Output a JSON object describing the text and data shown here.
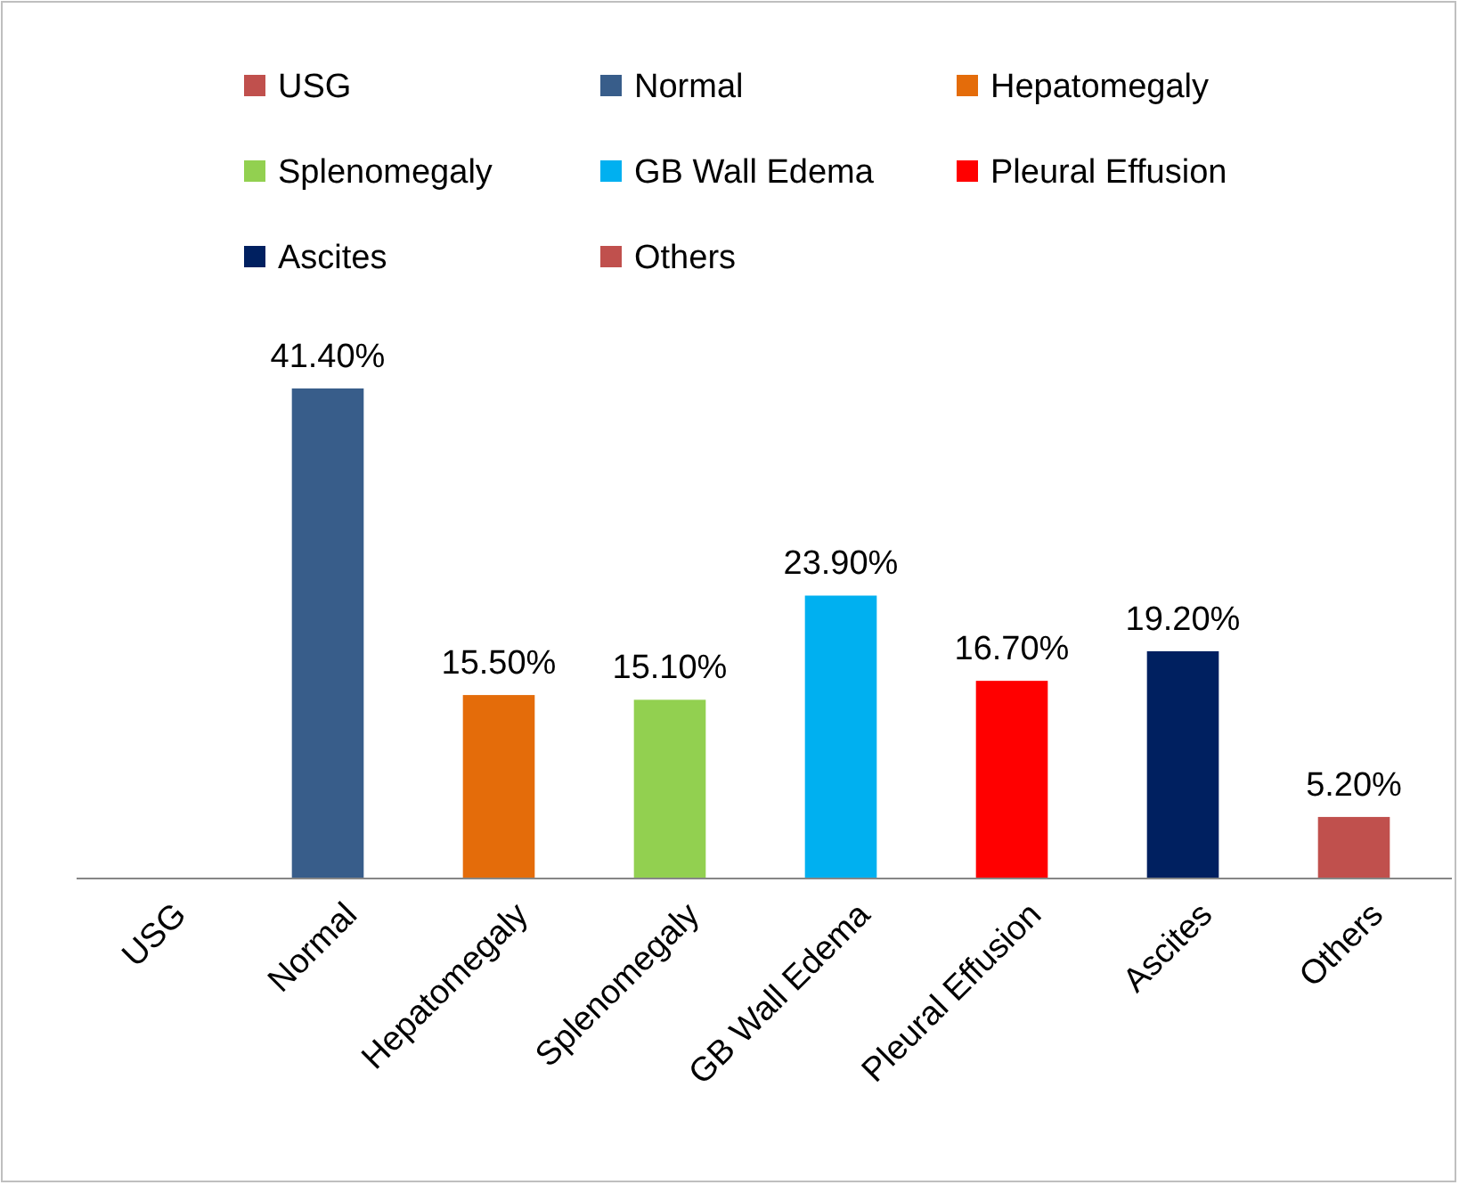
{
  "chart_data": {
    "type": "bar",
    "stacked": true,
    "categories": [
      "USG",
      "Normal",
      "Hepatomegaly",
      "Splenomegaly",
      "GB Wall Edema",
      "Pleural Effusion",
      "Ascites",
      "Others"
    ],
    "series": [
      {
        "name": "USG",
        "color": "#c0504d",
        "values": [
          null,
          null,
          null,
          null,
          null,
          null,
          null,
          null
        ],
        "value_labels": [
          null,
          null,
          null,
          null,
          null,
          null,
          null,
          null
        ]
      },
      {
        "name": "Normal",
        "color": "#385d8a",
        "values": [
          null,
          41.4,
          null,
          null,
          null,
          null,
          null,
          null
        ],
        "value_labels": [
          null,
          "41.40%",
          null,
          null,
          null,
          null,
          null,
          null
        ]
      },
      {
        "name": "Hepatomegaly",
        "color": "#e46c0a",
        "values": [
          null,
          null,
          15.5,
          null,
          null,
          null,
          null,
          null
        ],
        "value_labels": [
          null,
          null,
          "15.50%",
          null,
          null,
          null,
          null,
          null
        ]
      },
      {
        "name": "Splenomegaly",
        "color": "#92d050",
        "values": [
          null,
          null,
          null,
          15.1,
          null,
          null,
          null,
          null
        ],
        "value_labels": [
          null,
          null,
          null,
          "15.10%",
          null,
          null,
          null,
          null
        ]
      },
      {
        "name": "GB Wall Edema",
        "color": "#00b0f0",
        "values": [
          null,
          null,
          null,
          null,
          23.9,
          null,
          null,
          null
        ],
        "value_labels": [
          null,
          null,
          null,
          null,
          "23.90%",
          null,
          null,
          null
        ]
      },
      {
        "name": "Pleural Effusion",
        "color": "#ff0000",
        "values": [
          null,
          null,
          null,
          null,
          null,
          16.7,
          null,
          null
        ],
        "value_labels": [
          null,
          null,
          null,
          null,
          null,
          "16.70%",
          null,
          null
        ]
      },
      {
        "name": "Ascites",
        "color": "#002060",
        "values": [
          null,
          null,
          null,
          null,
          null,
          null,
          19.2,
          null
        ],
        "value_labels": [
          null,
          null,
          null,
          null,
          null,
          null,
          "19.20%",
          null
        ]
      },
      {
        "name": "Others",
        "color": "#c0504d",
        "values": [
          null,
          null,
          null,
          null,
          null,
          null,
          null,
          5.2
        ],
        "value_labels": [
          null,
          null,
          null,
          null,
          null,
          null,
          null,
          "5.20%"
        ]
      }
    ],
    "legend": "top"
  }
}
